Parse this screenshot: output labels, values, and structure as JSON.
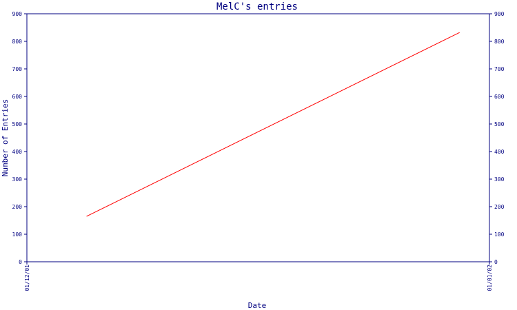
{
  "chart_data": {
    "type": "line",
    "title": "MelC's entries",
    "xlabel": "Date",
    "ylabel": "Number of Entries",
    "x_tick_labels": [
      "01/12/01",
      "01/01/02"
    ],
    "yticks": [
      0,
      100,
      200,
      300,
      400,
      500,
      600,
      700,
      800,
      900
    ],
    "ylim": [
      0,
      900
    ],
    "y_axis_right": true,
    "grid": false,
    "legend": "none",
    "series": [
      {
        "color": "#ff0000",
        "points": [
          {
            "x": "2001-12-05",
            "y": 165
          },
          {
            "x": "2001-12-30",
            "y": 832
          }
        ]
      }
    ],
    "colors": {
      "axis": "#000080",
      "text": "#000080",
      "series": "#ff0000",
      "background": "#ffffff"
    }
  }
}
